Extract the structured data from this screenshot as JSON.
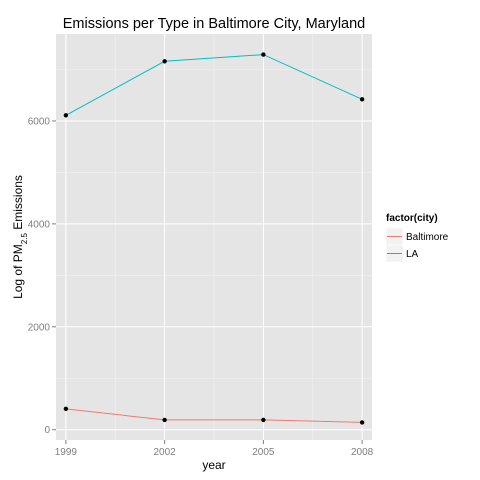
{
  "chart_data": {
    "type": "line",
    "title": "Emissions per Type in Baltimore City, Maryland",
    "xlabel": "year",
    "ylabel": {
      "prefix": "Log of PM",
      "subscript": "2.5",
      "suffix": " Emissions"
    },
    "x": [
      1999,
      2002,
      2005,
      2008
    ],
    "xlim": [
      1998.7,
      2008.3
    ],
    "ylim": [
      -200,
      7690
    ],
    "x_ticks": [
      1999,
      2002,
      2005,
      2008
    ],
    "y_ticks": [
      0,
      2000,
      4000,
      6000
    ],
    "grid": true,
    "legend_position": "right",
    "legend_title": "factor(city)",
    "series": [
      {
        "name": "Baltimore",
        "color": "#F8766D",
        "values": [
          406,
          190,
          190,
          142
        ]
      },
      {
        "name": "LA",
        "color": "#00BFC4",
        "values": [
          6110,
          7160,
          7290,
          6420
        ]
      }
    ]
  }
}
